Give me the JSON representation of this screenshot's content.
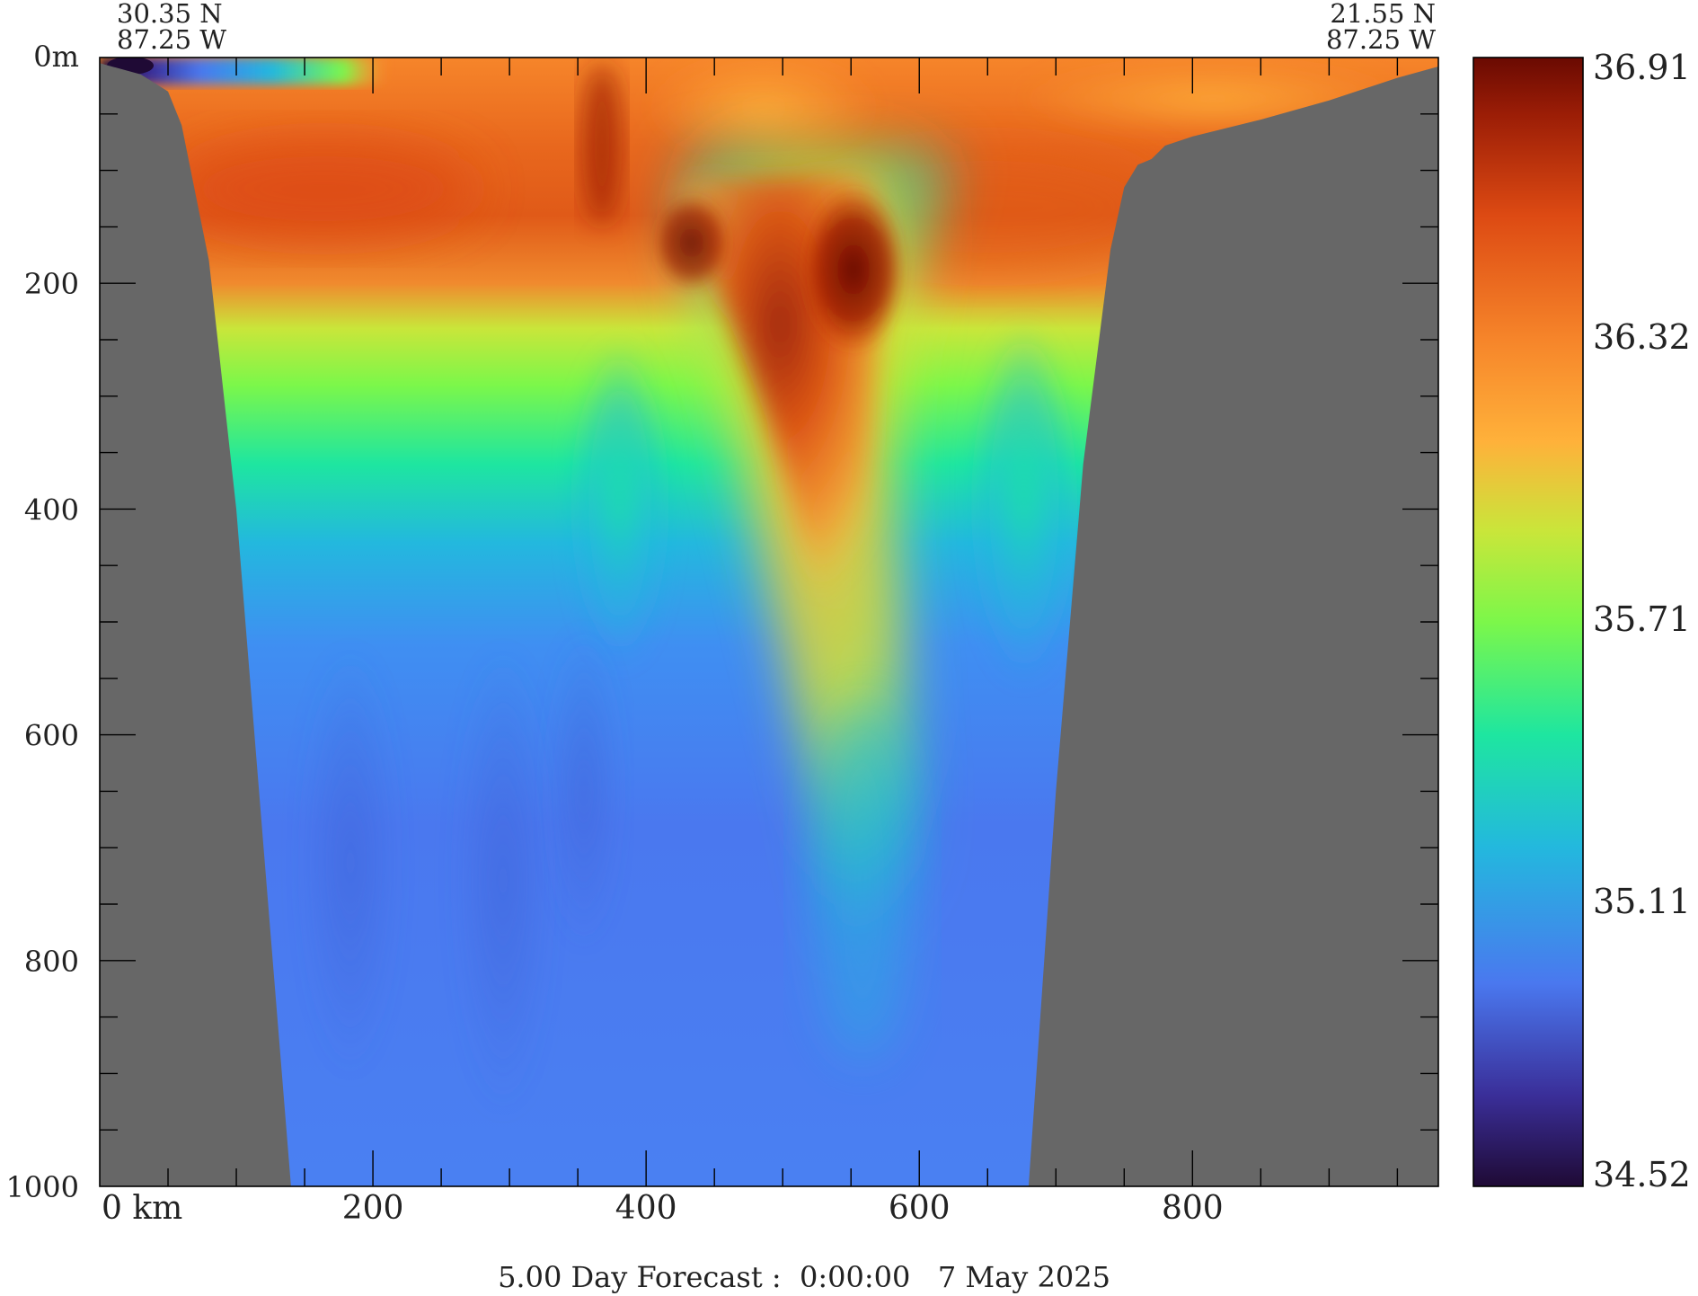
{
  "chart_data": {
    "type": "heatmap",
    "title": "",
    "footer": "5.00 Day Forecast :  0:00:00   7 May 2025",
    "corner_left": {
      "lat": "30.35 N",
      "lon": "87.25 W"
    },
    "corner_right": {
      "lat": "21.55 N",
      "lon": "87.25 W"
    },
    "x_axis": {
      "range": [
        0,
        980
      ],
      "ticks": [
        {
          "value": 0,
          "label": "0 km"
        },
        {
          "value": 200,
          "label": "200"
        },
        {
          "value": 400,
          "label": "400"
        },
        {
          "value": 600,
          "label": "600"
        },
        {
          "value": 800,
          "label": "800"
        }
      ],
      "minor_step": 50
    },
    "y_axis": {
      "range": [
        0,
        1000
      ],
      "inverted": true,
      "ticks": [
        {
          "value": 0,
          "label": "0m"
        },
        {
          "value": 200,
          "label": "200"
        },
        {
          "value": 400,
          "label": "400"
        },
        {
          "value": 600,
          "label": "600"
        },
        {
          "value": 800,
          "label": "800"
        },
        {
          "value": 1000,
          "label": "1000"
        }
      ],
      "minor_step": 50
    },
    "colorbar": {
      "range": [
        34.52,
        36.91
      ],
      "tick_labels": [
        "36.91",
        "36.32",
        "35.71",
        "35.11",
        "34.52"
      ],
      "stops": [
        "#1f0a35",
        "#3a2e98",
        "#4a78ef",
        "#23b8de",
        "#1ee6a0",
        "#7cf74a",
        "#c9e63a",
        "#ffb13a",
        "#f6852a",
        "#dd4a13",
        "#9b1d06",
        "#6a0a02"
      ]
    },
    "land_color": "#676767",
    "bathymetry": {
      "distance_km": [
        0,
        30,
        50,
        60,
        80,
        100,
        120,
        140,
        160,
        190,
        230,
        300,
        450,
        600,
        680,
        700,
        720,
        740,
        750,
        760,
        770,
        780,
        800,
        850,
        900,
        950,
        980
      ],
      "depth_m": [
        5,
        15,
        30,
        60,
        180,
        400,
        700,
        1000,
        1000,
        1000,
        1000,
        1000,
        1000,
        1000,
        1000,
        650,
        360,
        170,
        115,
        95,
        90,
        78,
        70,
        55,
        38,
        18,
        8
      ]
    },
    "field_sketch": {
      "note": "approximate salinity field, upper layer high salinity (~36.3-36.9), decreasing to ~35.0 at depth; a high-salinity tongue descends near 520-560 km",
      "surface_low_patch": {
        "distance_km": [
          0,
          200
        ],
        "depth_m": [
          0,
          25
        ],
        "value_range": [
          34.52,
          35.6
        ]
      }
    }
  }
}
